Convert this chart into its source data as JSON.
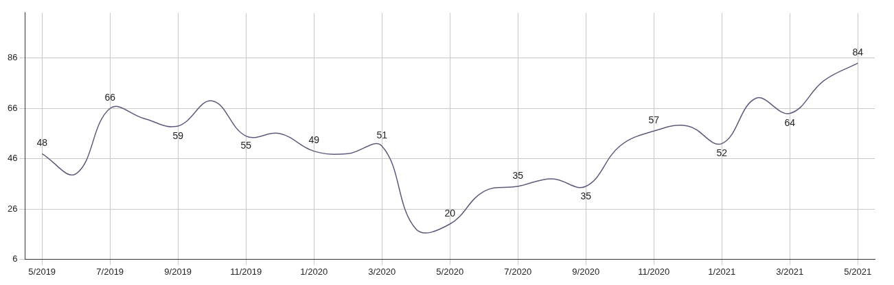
{
  "chart_data": {
    "type": "line",
    "categories": [
      "5/2019",
      null,
      "7/2019",
      null,
      "9/2019",
      null,
      "11/2019",
      null,
      "1/2020",
      null,
      "3/2020",
      null,
      "5/2020",
      null,
      "7/2020",
      null,
      "9/2020",
      null,
      "11/2020",
      null,
      "1/2021",
      null,
      "3/2021",
      null,
      "5/2021"
    ],
    "series": [
      {
        "color": "#5c5a7a",
        "values": [
          48,
          40,
          66,
          62,
          59,
          69,
          55,
          56,
          49,
          48,
          51,
          18,
          20,
          33,
          35,
          38,
          35,
          51,
          57,
          59,
          52,
          70,
          64,
          77,
          84
        ],
        "value_labels": [
          "48",
          null,
          "66",
          null,
          "59",
          null,
          "55",
          null,
          "49",
          null,
          "51",
          null,
          "20",
          null,
          "35",
          null,
          "35",
          null,
          "57",
          null,
          "52",
          null,
          "64",
          null,
          "84"
        ]
      }
    ],
    "ylim": [
      6,
      104
    ],
    "yticks": [
      6,
      26,
      46,
      66,
      86
    ],
    "grid": true,
    "legend": false,
    "marker": "none",
    "line_style": "solid"
  }
}
